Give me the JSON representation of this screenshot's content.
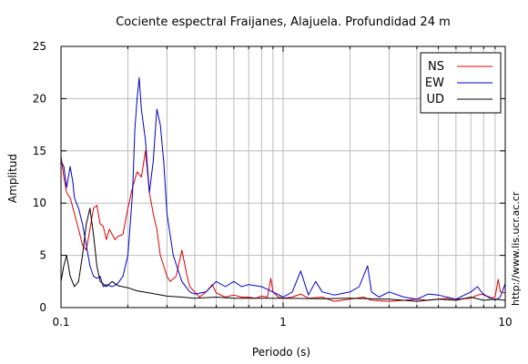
{
  "chart_data": {
    "type": "line",
    "title": "Cociente espectral Fraijanes, Alajuela. Profundidad 24 m",
    "xlabel": "Periodo (s)",
    "ylabel": "Amplitud",
    "x_scale": "log",
    "xlim": [
      0.1,
      10
    ],
    "ylim": [
      0,
      25
    ],
    "x_ticks": [
      0.1,
      1,
      10
    ],
    "x_tick_labels": [
      "0.1",
      "1",
      "10"
    ],
    "y_ticks": [
      0,
      5,
      10,
      15,
      20,
      25
    ],
    "y_tick_labels": [
      "0",
      "5",
      "10",
      "15",
      "20",
      "25"
    ],
    "grid": true,
    "legend": "top-right",
    "credit": "http://www.lis.ucr.ac.cr",
    "series": [
      {
        "name": "NS",
        "color": "#dd0000",
        "x": [
          0.1,
          0.103,
          0.106,
          0.11,
          0.115,
          0.12,
          0.125,
          0.13,
          0.135,
          0.14,
          0.145,
          0.15,
          0.155,
          0.16,
          0.165,
          0.17,
          0.175,
          0.18,
          0.19,
          0.2,
          0.21,
          0.22,
          0.23,
          0.24,
          0.25,
          0.26,
          0.27,
          0.28,
          0.29,
          0.3,
          0.31,
          0.33,
          0.35,
          0.37,
          0.38,
          0.4,
          0.42,
          0.45,
          0.48,
          0.5,
          0.55,
          0.6,
          0.65,
          0.7,
          0.75,
          0.8,
          0.85,
          0.88,
          0.9,
          0.95,
          1.0,
          1.1,
          1.2,
          1.3,
          1.5,
          1.7,
          2.0,
          2.3,
          2.5,
          3.0,
          3.5,
          4.0,
          4.5,
          5.0,
          5.5,
          6.0,
          7.0,
          7.5,
          8.0,
          8.5,
          9.0,
          9.3,
          9.5,
          10.0
        ],
        "values": [
          14.5,
          12.5,
          11.0,
          10.5,
          9.0,
          7.5,
          6.0,
          5.5,
          7.5,
          9.5,
          9.8,
          8.0,
          7.8,
          6.5,
          7.5,
          7.0,
          6.5,
          6.8,
          7.0,
          9.5,
          11.5,
          13.0,
          12.5,
          15.0,
          11.0,
          9.0,
          7.5,
          5.0,
          4.0,
          3.0,
          2.5,
          3.0,
          5.5,
          3.0,
          2.0,
          1.5,
          1.0,
          1.5,
          2.2,
          1.4,
          1.0,
          1.2,
          1.0,
          1.0,
          0.9,
          1.1,
          1.0,
          2.8,
          1.5,
          1.0,
          0.9,
          1.0,
          1.3,
          0.9,
          1.0,
          0.6,
          0.8,
          1.0,
          0.7,
          0.6,
          0.7,
          0.8,
          0.7,
          0.8,
          0.9,
          0.8,
          0.9,
          1.2,
          1.3,
          0.9,
          1.0,
          2.7,
          1.5,
          1.4
        ]
      },
      {
        "name": "EW",
        "color": "#0000cc",
        "x": [
          0.1,
          0.103,
          0.106,
          0.11,
          0.113,
          0.115,
          0.12,
          0.125,
          0.13,
          0.135,
          0.14,
          0.145,
          0.15,
          0.155,
          0.16,
          0.17,
          0.18,
          0.19,
          0.2,
          0.21,
          0.215,
          0.22,
          0.225,
          0.23,
          0.24,
          0.25,
          0.26,
          0.27,
          0.28,
          0.29,
          0.3,
          0.32,
          0.35,
          0.38,
          0.4,
          0.45,
          0.5,
          0.55,
          0.6,
          0.65,
          0.7,
          0.8,
          0.9,
          1.0,
          1.1,
          1.2,
          1.3,
          1.4,
          1.5,
          1.7,
          2.0,
          2.2,
          2.4,
          2.5,
          2.7,
          3.0,
          3.5,
          4.0,
          4.5,
          5.0,
          6.0,
          7.0,
          7.5,
          8.0,
          8.5,
          9.0,
          9.5,
          10.0
        ],
        "values": [
          14.0,
          13.5,
          11.5,
          13.5,
          12.0,
          10.5,
          9.5,
          8.0,
          6.0,
          4.0,
          3.0,
          2.8,
          3.0,
          2.0,
          2.2,
          2.0,
          2.3,
          3.0,
          5.0,
          11.0,
          17.0,
          20.0,
          22.0,
          19.0,
          16.0,
          11.0,
          14.0,
          19.0,
          17.5,
          14.0,
          9.0,
          5.0,
          2.5,
          1.5,
          1.3,
          1.5,
          2.5,
          2.0,
          2.5,
          2.0,
          2.2,
          2.0,
          1.5,
          1.0,
          1.5,
          3.5,
          1.2,
          2.5,
          1.5,
          1.2,
          1.5,
          2.0,
          4.0,
          1.5,
          1.0,
          1.5,
          1.0,
          0.8,
          1.3,
          1.2,
          0.8,
          1.5,
          2.0,
          1.2,
          1.0,
          0.7,
          1.0,
          2.3
        ]
      },
      {
        "name": "UD",
        "color": "#000000",
        "x": [
          0.1,
          0.103,
          0.106,
          0.11,
          0.115,
          0.12,
          0.125,
          0.13,
          0.135,
          0.14,
          0.145,
          0.15,
          0.16,
          0.17,
          0.18,
          0.2,
          0.22,
          0.25,
          0.3,
          0.35,
          0.4,
          0.5,
          0.6,
          0.8,
          1.0,
          1.5,
          2.0,
          3.0,
          4.0,
          5.0,
          6.0,
          7.0,
          8.0,
          9.0,
          10.0
        ],
        "values": [
          2.5,
          4.0,
          5.0,
          3.0,
          2.0,
          2.5,
          5.0,
          8.0,
          9.5,
          7.0,
          4.0,
          2.5,
          2.0,
          2.5,
          2.1,
          1.9,
          1.6,
          1.4,
          1.1,
          1.0,
          0.9,
          1.0,
          0.9,
          0.9,
          0.9,
          0.85,
          0.9,
          0.8,
          0.6,
          0.8,
          0.7,
          1.0,
          0.7,
          0.8,
          0.7
        ]
      }
    ]
  }
}
